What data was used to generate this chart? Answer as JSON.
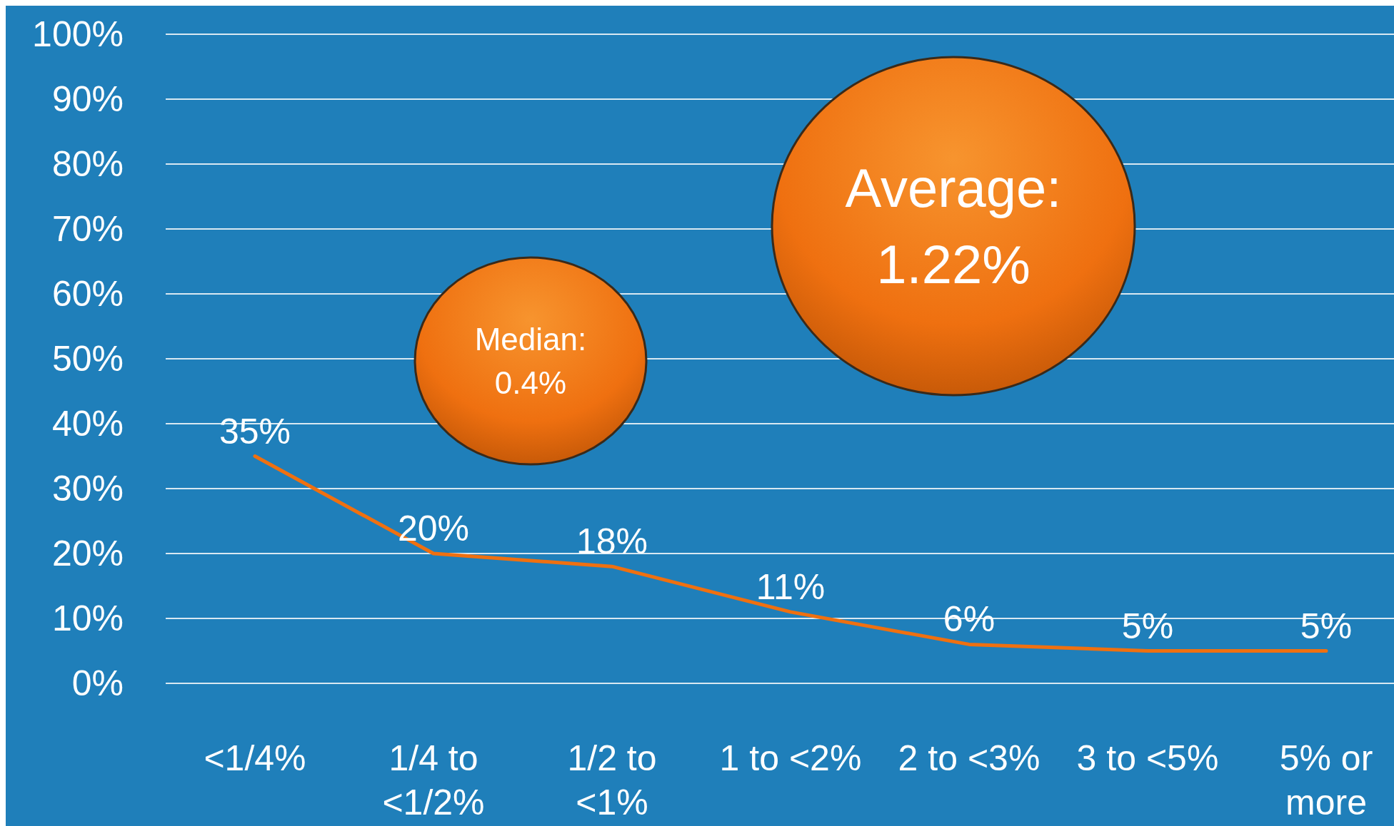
{
  "chart_data": {
    "type": "line",
    "categories": [
      "<1/4%",
      "1/4 to <1/2%",
      "1/2 to <1%",
      "1 to <2%",
      "2 to <3%",
      "3 to <5%",
      "5% or more"
    ],
    "series": [
      {
        "color": "#ef7010",
        "values": [
          35,
          20,
          18,
          11,
          6,
          5,
          5
        ],
        "value_labels": [
          "35%",
          "20%",
          "18%",
          "11%",
          "6%",
          "5%",
          "5%"
        ]
      }
    ],
    "ylim": [
      0,
      100
    ],
    "yticks": [
      {
        "value": 0,
        "label": "0%"
      },
      {
        "value": 10,
        "label": "10%"
      },
      {
        "value": 20,
        "label": "20%"
      },
      {
        "value": 30,
        "label": "30%"
      },
      {
        "value": 40,
        "label": "40%"
      },
      {
        "value": 50,
        "label": "50%"
      },
      {
        "value": 60,
        "label": "60%"
      },
      {
        "value": 70,
        "label": "70%"
      },
      {
        "value": 80,
        "label": "80%"
      },
      {
        "value": 90,
        "label": "90%"
      },
      {
        "value": 100,
        "label": "100%"
      }
    ],
    "grid": "y",
    "marker": "none",
    "line_style": "solid",
    "annotations": [
      "Median: 0.4%",
      "Average: 1.22%"
    ]
  }
}
